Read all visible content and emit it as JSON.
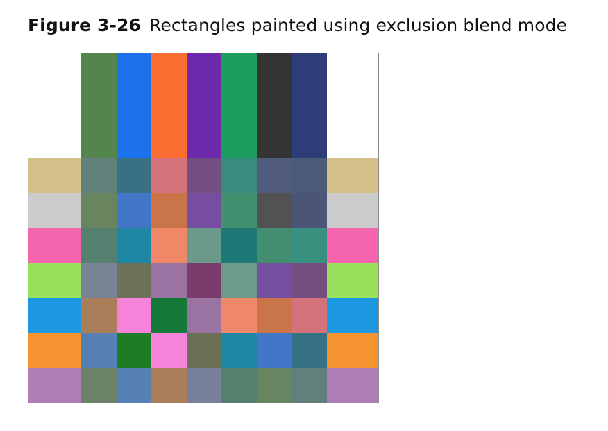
{
  "caption": {
    "label": "Figure 3-26",
    "title": "Rectangles painted using exclusion blend mode"
  },
  "figure": {
    "top_band": {
      "left_cap": "#ffffff",
      "columns": [
        "#53854c",
        "#1b72ec",
        "#fc6d32",
        "#6e2aac",
        "#1d9e5e",
        "#343434",
        "#2e3c78"
      ],
      "right_cap": "#ffffff"
    },
    "rows": [
      {
        "cap": "#d4c18a",
        "cells": [
          "#618079",
          "#377183",
          "#d4737b",
          "#744f82",
          "#3a8a7d",
          "#515b7c",
          "#4b5a78"
        ]
      },
      {
        "cap": "#cccccc",
        "cells": [
          "#688560",
          "#4177c6",
          "#c97449",
          "#764da0",
          "#419171",
          "#525252",
          "#4b5676"
        ]
      },
      {
        "cap": "#f565ad",
        "cells": [
          "#55806f",
          "#1f86a3",
          "#f08868",
          "#6b9a8d",
          "#1e7876",
          "#438e70",
          "#38907e"
        ]
      },
      {
        "cap": "#99e15c",
        "cells": [
          "#788396",
          "#6c7157",
          "#9a73a3",
          "#7b3c6c",
          "#6c9a8d",
          "#764ea0",
          "#744f80"
        ]
      },
      {
        "cap": "#1c98e0",
        "cells": [
          "#ab7e5a",
          "#f682da",
          "#157a39",
          "#9a73a3",
          "#ef8769",
          "#c97449",
          "#d4727b"
        ]
      },
      {
        "cap": "#f59331",
        "cells": [
          "#5680b4",
          "#1e7b26",
          "#f683da",
          "#6b6f56",
          "#1f86a3",
          "#4276c6",
          "#357083"
        ]
      },
      {
        "cap": "#b07db7",
        "cells": [
          "#6c8369",
          "#5581b4",
          "#ab7e5a",
          "#77829a",
          "#55816e",
          "#688561",
          "#617f7b"
        ]
      }
    ]
  }
}
